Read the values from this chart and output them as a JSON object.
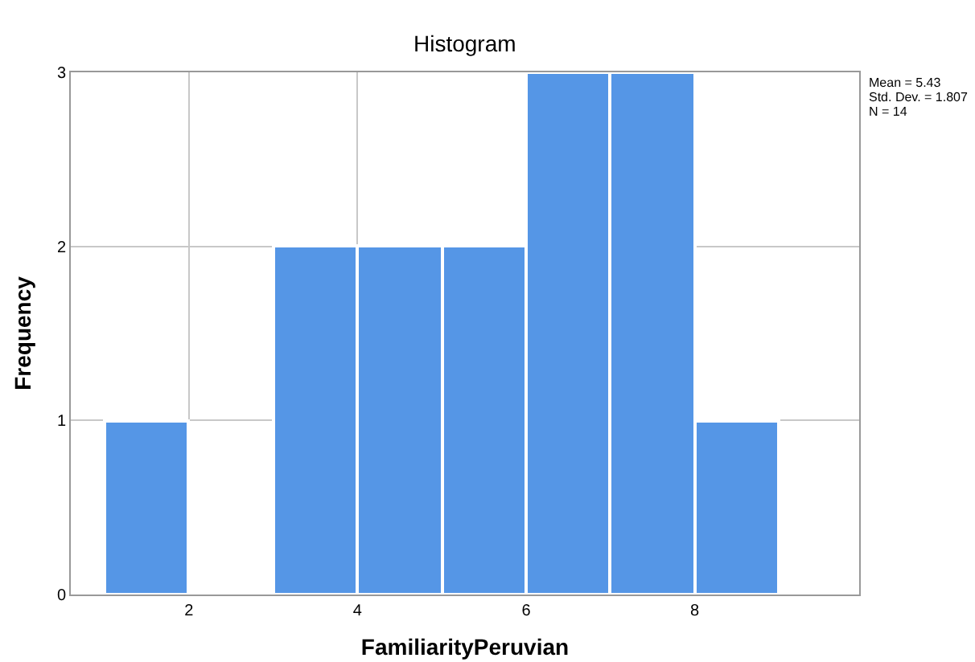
{
  "chart_data": {
    "type": "histogram",
    "title": "Histogram",
    "xlabel": "FamiliarityPeruvian",
    "ylabel": "Frequency",
    "bins": [
      1,
      2,
      3,
      4,
      5,
      6,
      7,
      8,
      9
    ],
    "values": [
      1,
      0,
      2,
      2,
      2,
      3,
      3,
      1
    ],
    "color": "#5596e6",
    "xlim": [
      0.6,
      9.95
    ],
    "xticks": [
      2,
      4,
      6,
      8
    ],
    "ylim": [
      0,
      3
    ],
    "yticks": [
      0,
      1,
      2,
      3
    ],
    "grid": true,
    "annotations": [
      "Mean = 5.43",
      "Std. Dev. = 1.807",
      "N = 14"
    ]
  }
}
